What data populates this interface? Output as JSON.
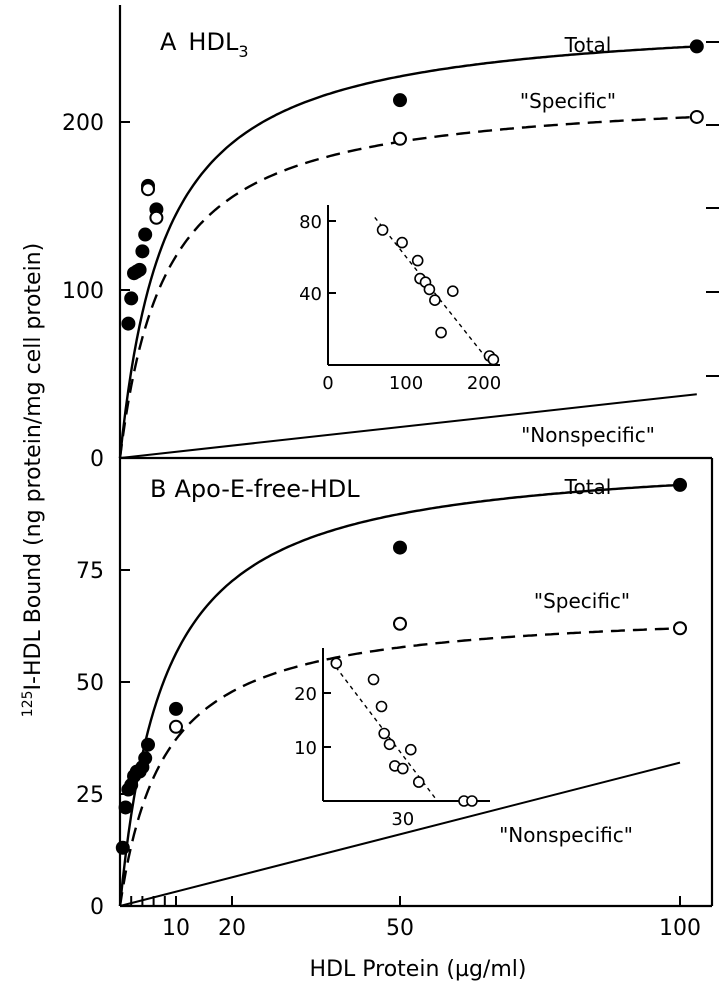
{
  "figure": {
    "ylabel": "125I-HDL Bound (ng protein/mg cell protein)",
    "ylabel_sup": "125",
    "ylabel_main": "I-HDL Bound (ng protein/mg cell protein)",
    "xlabel": "HDL Protein (µg/ml)"
  },
  "chart_data": [
    {
      "panel": "A",
      "type": "line",
      "title": "A HDL3",
      "panel_letter": "A",
      "panel_name": "HDL",
      "panel_subscript": "3",
      "ylim": [
        0,
        250
      ],
      "xlim": [
        0,
        105
      ],
      "yticks": [
        0,
        100,
        200
      ],
      "series": [
        {
          "name": "Total",
          "style": "solid",
          "marker": "filled-circle",
          "x": [
            1.5,
            2.0,
            2.5,
            3.0,
            3.5,
            4.0,
            4.5,
            5.0,
            6.5,
            50.0,
            103.0
          ],
          "y": [
            80,
            95,
            110,
            111,
            112,
            123,
            133,
            162,
            148,
            213,
            245
          ]
        },
        {
          "name": "\"Specific\"",
          "style": "dashed",
          "marker": "open-circle",
          "x": [
            5.0,
            6.5,
            50.0,
            103.0
          ],
          "y": [
            160,
            143,
            190,
            203
          ]
        },
        {
          "name": "\"Nonspecific\"",
          "style": "solid",
          "marker": "none",
          "x": [
            0,
            103
          ],
          "y": [
            0,
            38
          ]
        }
      ],
      "inset": {
        "type": "scatter",
        "xticks": [
          0,
          100,
          200
        ],
        "yticks": [
          40,
          80
        ],
        "x": [
          70,
          95,
          115,
          118,
          125,
          130,
          137,
          145,
          160,
          207,
          212
        ],
        "y": [
          75,
          68,
          58,
          48,
          46,
          42,
          36,
          18,
          41,
          5,
          3
        ],
        "fit": {
          "x": [
            60,
            210
          ],
          "y": [
            82,
            0
          ]
        }
      }
    },
    {
      "panel": "B",
      "type": "line",
      "title": "B Apo-E-free-HDL",
      "panel_letter": "B",
      "panel_name": "Apo-E-free-HDL",
      "ylim": [
        0,
        100
      ],
      "xlim": [
        0,
        105
      ],
      "yticks": [
        0,
        25,
        50,
        75
      ],
      "xticks": [
        10,
        20,
        50,
        100
      ],
      "series": [
        {
          "name": "Total",
          "style": "solid",
          "marker": "filled-circle",
          "x": [
            0.5,
            1.0,
            1.5,
            2.0,
            2.5,
            3.0,
            3.5,
            4.0,
            4.5,
            5.0,
            10.0,
            50.0,
            100.0
          ],
          "y": [
            13,
            22,
            26,
            27,
            29,
            30,
            30,
            31,
            33,
            36,
            44,
            80,
            94
          ]
        },
        {
          "name": "\"Specific\"",
          "style": "dashed",
          "marker": "open-circle",
          "x": [
            10.0,
            50.0,
            100.0
          ],
          "y": [
            40,
            63,
            62
          ]
        },
        {
          "name": "\"Nonspecific\"",
          "style": "solid",
          "marker": "none",
          "x": [
            0,
            100
          ],
          "y": [
            0,
            32
          ]
        }
      ],
      "inset": {
        "type": "scatter",
        "xticks": [
          30
        ],
        "yticks": [
          10,
          20
        ],
        "x": [
          5,
          19,
          22,
          23,
          25,
          27,
          30,
          33,
          36,
          53,
          56
        ],
        "y": [
          25.5,
          22.5,
          17.5,
          12.5,
          10.5,
          6.5,
          6,
          9.5,
          3.5,
          0,
          0
        ],
        "fit": {
          "x": [
            3,
            43
          ],
          "y": [
            26,
            0
          ]
        }
      }
    }
  ]
}
